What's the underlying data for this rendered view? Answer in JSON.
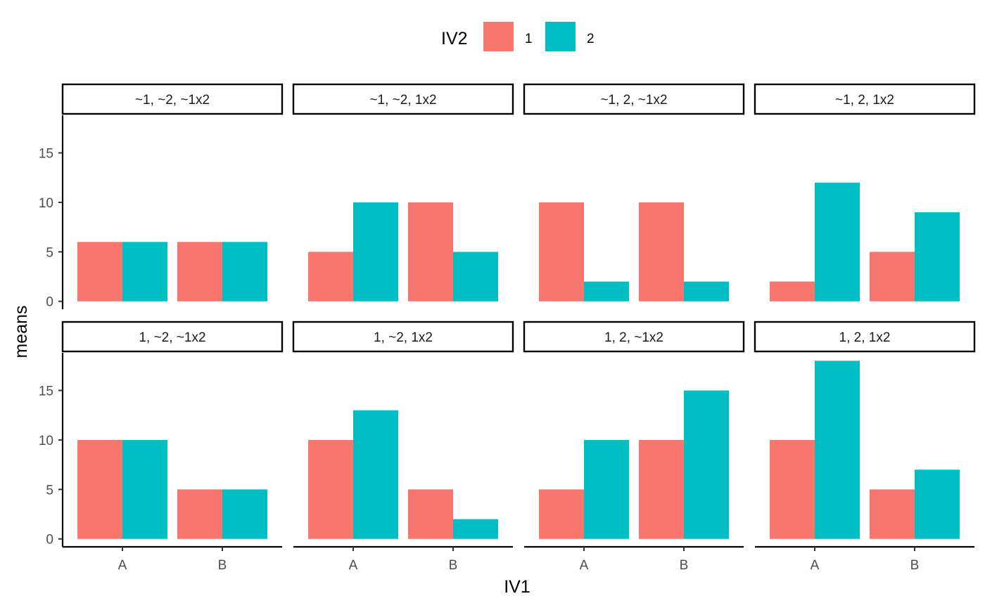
{
  "chart_data": {
    "type": "bar",
    "xlabel": "IV1",
    "ylabel": "means",
    "legend": {
      "title": "IV2",
      "position": "top",
      "entries": [
        {
          "label": "1",
          "color": "#F8766D"
        },
        {
          "label": "2",
          "color": "#00BFC4"
        }
      ]
    },
    "categories": [
      "A",
      "B"
    ],
    "ylim": [
      -0.8,
      18.8
    ],
    "yticks": [
      0,
      5,
      10,
      15
    ],
    "grid": false,
    "facets": [
      {
        "title": "~1, ~2, ~1x2",
        "series": [
          {
            "name": "1",
            "values": [
              6,
              6
            ]
          },
          {
            "name": "2",
            "values": [
              6,
              6
            ]
          }
        ]
      },
      {
        "title": "~1, ~2, 1x2",
        "series": [
          {
            "name": "1",
            "values": [
              5,
              10
            ]
          },
          {
            "name": "2",
            "values": [
              10,
              5
            ]
          }
        ]
      },
      {
        "title": "~1, 2, ~1x2",
        "series": [
          {
            "name": "1",
            "values": [
              10,
              10
            ]
          },
          {
            "name": "2",
            "values": [
              2,
              2
            ]
          }
        ]
      },
      {
        "title": "~1, 2, 1x2",
        "series": [
          {
            "name": "1",
            "values": [
              2,
              5
            ]
          },
          {
            "name": "2",
            "values": [
              12,
              9
            ]
          }
        ]
      },
      {
        "title": "1, ~2, ~1x2",
        "series": [
          {
            "name": "1",
            "values": [
              10,
              5
            ]
          },
          {
            "name": "2",
            "values": [
              10,
              5
            ]
          }
        ]
      },
      {
        "title": "1, ~2, 1x2",
        "series": [
          {
            "name": "1",
            "values": [
              10,
              5
            ]
          },
          {
            "name": "2",
            "values": [
              13,
              2
            ]
          }
        ]
      },
      {
        "title": "1, 2, ~1x2",
        "series": [
          {
            "name": "1",
            "values": [
              5,
              10
            ]
          },
          {
            "name": "2",
            "values": [
              10,
              15
            ]
          }
        ]
      },
      {
        "title": "1, 2, 1x2",
        "series": [
          {
            "name": "1",
            "values": [
              10,
              5
            ]
          },
          {
            "name": "2",
            "values": [
              18,
              7
            ]
          }
        ]
      }
    ]
  }
}
